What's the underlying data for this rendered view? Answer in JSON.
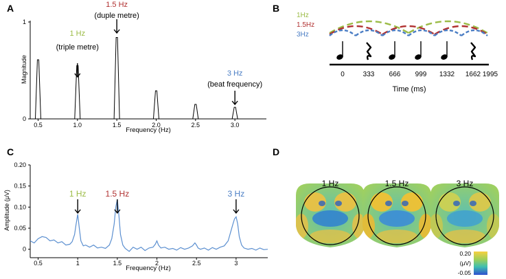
{
  "panels": {
    "A": {
      "label": "A"
    },
    "B": {
      "label": "B"
    },
    "C": {
      "label": "C"
    },
    "D": {
      "label": "D"
    }
  },
  "colors": {
    "green": "#9bbb45",
    "red": "#b03030",
    "blue": "#4a7dc4",
    "trace": "#5b8fd0"
  },
  "chart_data": [
    {
      "id": "A",
      "type": "bar",
      "xlabel": "Frequency (Hz)",
      "ylabel": "Magnitude",
      "xlim": [
        0.4,
        3.4
      ],
      "ylim": [
        0,
        1
      ],
      "xticks": [
        "0.5",
        "1.0",
        "1.5",
        "2.0",
        "2.5",
        "3.0"
      ],
      "yticks": [
        "0",
        "1"
      ],
      "peaks": [
        {
          "x": 0.5,
          "value": 0.61
        },
        {
          "x": 1.0,
          "value": 0.55
        },
        {
          "x": 1.5,
          "value": 0.84
        },
        {
          "x": 2.0,
          "value": 0.29
        },
        {
          "x": 2.5,
          "value": 0.15
        },
        {
          "x": 3.0,
          "value": 0.12
        }
      ],
      "annotations": [
        {
          "x": 1.0,
          "freq": "1 Hz",
          "desc": "(triple metre)",
          "color": "green"
        },
        {
          "x": 1.5,
          "freq": "1.5 Hz",
          "desc": "(duple metre)",
          "color": "red"
        },
        {
          "x": 3.0,
          "freq": "3 Hz",
          "desc": "(beat frequency)",
          "color": "blue"
        }
      ]
    },
    {
      "id": "C",
      "type": "line",
      "xlabel": "Frequency (Hz)",
      "ylabel": "Amplitude (μV)",
      "xlim": [
        0.4,
        3.4
      ],
      "ylim": [
        -0.02,
        0.2
      ],
      "xticks": [
        "0.5",
        "1",
        "1.5",
        "2",
        "2.5",
        "3"
      ],
      "yticks": [
        "0",
        "0.05",
        "0.10",
        "0.15",
        "0.20"
      ],
      "series": [
        {
          "name": "amplitude",
          "x": [
            0.4,
            0.45,
            0.5,
            0.55,
            0.6,
            0.65,
            0.7,
            0.75,
            0.8,
            0.85,
            0.9,
            0.93,
            0.96,
            0.98,
            1.0,
            1.02,
            1.04,
            1.07,
            1.1,
            1.15,
            1.2,
            1.25,
            1.3,
            1.35,
            1.4,
            1.43,
            1.46,
            1.48,
            1.5,
            1.52,
            1.54,
            1.57,
            1.6,
            1.65,
            1.7,
            1.75,
            1.8,
            1.85,
            1.9,
            1.95,
            1.98,
            2.0,
            2.02,
            2.05,
            2.1,
            2.15,
            2.2,
            2.25,
            2.3,
            2.35,
            2.4,
            2.45,
            2.48,
            2.5,
            2.52,
            2.55,
            2.6,
            2.65,
            2.7,
            2.75,
            2.8,
            2.85,
            2.9,
            2.93,
            2.96,
            2.98,
            3.0,
            3.02,
            3.04,
            3.07,
            3.1,
            3.15,
            3.2,
            3.25,
            3.3,
            3.35,
            3.4
          ],
          "values": [
            0.02,
            0.015,
            0.025,
            0.03,
            0.028,
            0.02,
            0.022,
            0.015,
            0.018,
            0.01,
            0.012,
            0.018,
            0.035,
            0.06,
            0.083,
            0.05,
            0.02,
            0.008,
            0.01,
            0.005,
            0.01,
            0.003,
            0.005,
            0.002,
            0.01,
            0.025,
            0.06,
            0.1,
            0.118,
            0.08,
            0.035,
            0.01,
            0.002,
            -0.005,
            0.005,
            0.0,
            0.005,
            -0.003,
            0.003,
            0.005,
            0.012,
            0.02,
            0.01,
            0.003,
            0.005,
            0.0,
            0.002,
            -0.002,
            0.004,
            0.0,
            0.003,
            0.008,
            0.015,
            0.01,
            0.003,
            0.0,
            0.003,
            -0.002,
            0.004,
            0.0,
            0.005,
            0.008,
            0.02,
            0.04,
            0.06,
            0.072,
            0.077,
            0.06,
            0.03,
            0.01,
            0.003,
            0.0,
            0.002,
            -0.002,
            0.003,
            -0.001,
            0.0
          ]
        }
      ],
      "annotations": [
        {
          "x": 1.0,
          "text": "1 Hz",
          "color": "green"
        },
        {
          "x": 1.5,
          "text": "1.5 Hz",
          "color": "red"
        },
        {
          "x": 3.0,
          "text": "3 Hz",
          "color": "blue"
        }
      ]
    }
  ],
  "panelB": {
    "legend": [
      {
        "text": "1Hz",
        "color": "green"
      },
      {
        "text": "1.5Hz",
        "color": "red"
      },
      {
        "text": "3Hz",
        "color": "blue"
      }
    ],
    "notes": [
      "note",
      "rest",
      "note",
      "note",
      "note",
      "rest"
    ],
    "time_ticks": [
      "0",
      "333",
      "666",
      "999",
      "1332",
      "1662",
      "1995"
    ],
    "xlabel": "Time (ms)"
  },
  "panelD": {
    "maps": [
      {
        "title": "1 Hz"
      },
      {
        "title": "1.5 Hz"
      },
      {
        "title": "3 Hz"
      }
    ],
    "colorbar": {
      "max": "0.20",
      "unit": "(μV)",
      "min": "-0.05"
    }
  }
}
